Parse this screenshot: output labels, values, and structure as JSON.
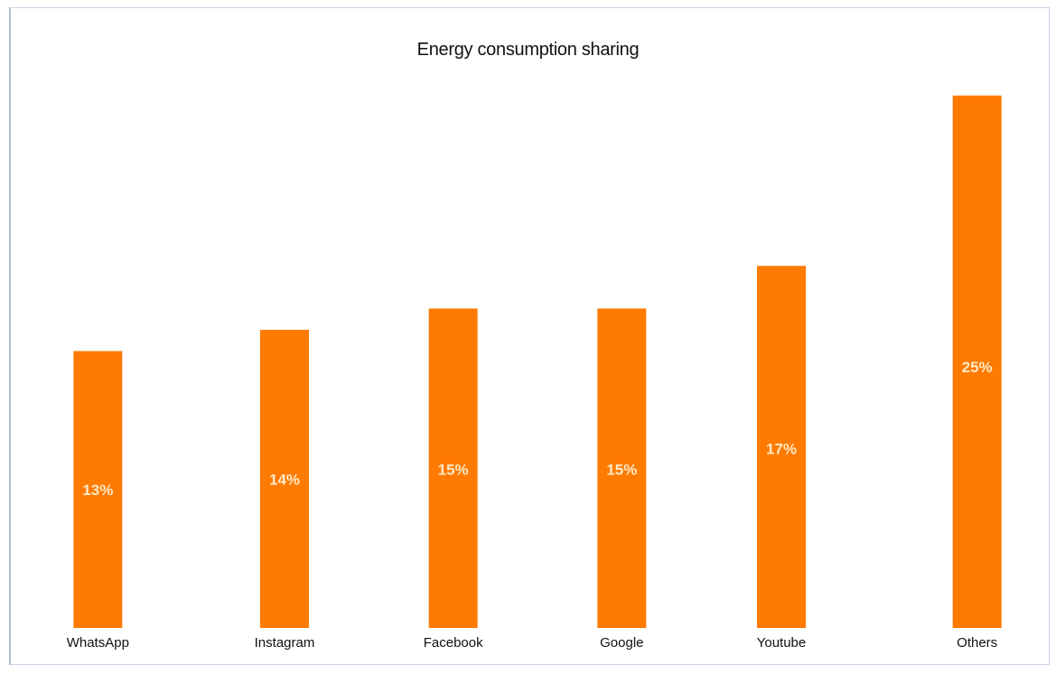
{
  "colors": {
    "bar": "#ff7a00",
    "frame": "#c9d3e4"
  },
  "chart_data": {
    "type": "bar",
    "title": "Energy consumption sharing",
    "xlabel": "",
    "ylabel": "",
    "ylim": [
      0,
      28
    ],
    "categories": [
      "WhatsApp",
      "Instagram",
      "Facebook",
      "Google",
      "Youtube",
      "Others"
    ],
    "values": [
      13,
      14,
      15,
      15,
      17,
      25
    ],
    "data_labels": [
      "13%",
      "14%",
      "15%",
      "15%",
      "17%",
      "25%"
    ],
    "grid": false,
    "legend": "none"
  }
}
